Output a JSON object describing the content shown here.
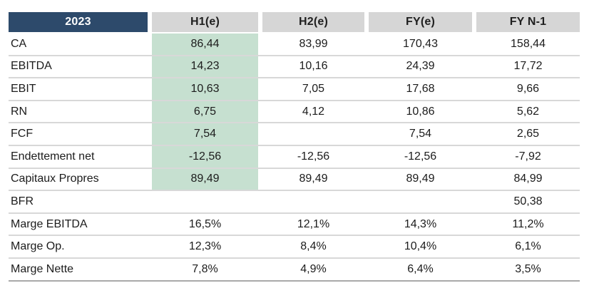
{
  "table": {
    "year": "2023",
    "columns": [
      "H1(e)",
      "H2(e)",
      "FY(e)",
      "FY N-1"
    ],
    "rows": [
      {
        "label": "CA",
        "h1": "86,44",
        "h2": "83,99",
        "fy": "170,43",
        "fyn1": "158,44"
      },
      {
        "label": "EBITDA",
        "h1": "14,23",
        "h2": "10,16",
        "fy": "24,39",
        "fyn1": "17,72"
      },
      {
        "label": "EBIT",
        "h1": "10,63",
        "h2": "7,05",
        "fy": "17,68",
        "fyn1": "9,66"
      },
      {
        "label": "RN",
        "h1": "6,75",
        "h2": "4,12",
        "fy": "10,86",
        "fyn1": "5,62"
      },
      {
        "label": "FCF",
        "h1": "7,54",
        "h2": "",
        "fy": "7,54",
        "fyn1": "2,65"
      },
      {
        "label": "Endettement net",
        "h1": "-12,56",
        "h2": "-12,56",
        "fy": "-12,56",
        "fyn1": "-7,92"
      },
      {
        "label": "Capitaux Propres",
        "h1": "89,49",
        "h2": "89,49",
        "fy": "89,49",
        "fyn1": "84,99"
      },
      {
        "label": "BFR",
        "h1": "",
        "h2": "",
        "fy": "",
        "fyn1": "50,38"
      },
      {
        "label": "Marge EBITDA",
        "h1": "16,5%",
        "h2": "12,1%",
        "fy": "14,3%",
        "fyn1": "11,2%"
      },
      {
        "label": "Marge Op.",
        "h1": "12,3%",
        "h2": "8,4%",
        "fy": "10,4%",
        "fyn1": "6,1%"
      },
      {
        "label": "Marge Nette",
        "h1": "7,8%",
        "h2": "4,9%",
        "fy": "6,4%",
        "fyn1": "3,5%"
      }
    ]
  },
  "chart_data": {
    "type": "table",
    "title": "2023",
    "columns": [
      "2023",
      "H1(e)",
      "H2(e)",
      "FY(e)",
      "FY N-1"
    ],
    "rows": [
      [
        "CA",
        "86,44",
        "83,99",
        "170,43",
        "158,44"
      ],
      [
        "EBITDA",
        "14,23",
        "10,16",
        "24,39",
        "17,72"
      ],
      [
        "EBIT",
        "10,63",
        "7,05",
        "17,68",
        "9,66"
      ],
      [
        "RN",
        "6,75",
        "4,12",
        "10,86",
        "5,62"
      ],
      [
        "FCF",
        "7,54",
        "",
        "7,54",
        "2,65"
      ],
      [
        "Endettement net",
        "-12,56",
        "-12,56",
        "-12,56",
        "-7,92"
      ],
      [
        "Capitaux Propres",
        "89,49",
        "89,49",
        "89,49",
        "84,99"
      ],
      [
        "BFR",
        "",
        "",
        "",
        "50,38"
      ],
      [
        "Marge EBITDA",
        "16,5%",
        "12,1%",
        "14,3%",
        "11,2%"
      ],
      [
        "Marge Op.",
        "12,3%",
        "8,4%",
        "10,4%",
        "6,1%"
      ],
      [
        "Marge Nette",
        "7,8%",
        "4,9%",
        "6,4%",
        "3,5%"
      ]
    ],
    "highlighted_column": "H1(e)",
    "highlighted_rows": [
      "CA",
      "EBITDA",
      "EBIT",
      "RN",
      "FCF",
      "Endettement net",
      "Capitaux Propres"
    ]
  },
  "colors": {
    "header_navy": "#2d4a6b",
    "header_gray": "#d6d6d6",
    "highlight_green": "#c6e0d0",
    "row_separator": "#d8d8d8",
    "table_bottom_border": "#a9a9a9",
    "text": "#1c1c1c"
  }
}
